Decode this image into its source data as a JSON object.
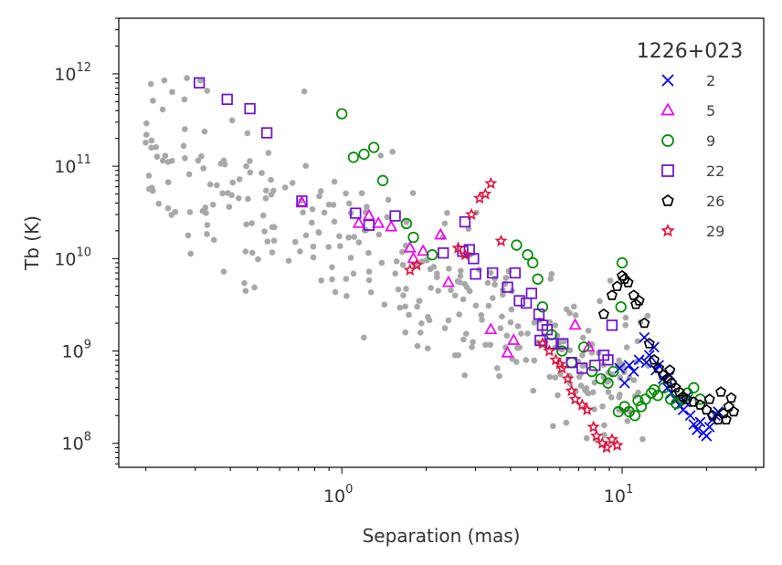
{
  "chart_data": {
    "type": "scatter",
    "xscale": "log",
    "yscale": "log",
    "xlim": [
      0.16,
      32
    ],
    "ylim": [
      55000000,
      4000000000000
    ],
    "xlabel": "Separation (mas)",
    "ylabel": "Tb (K)",
    "x_ticks": [
      {
        "value": 1,
        "base": "10",
        "exp": "0"
      },
      {
        "value": 10,
        "base": "10",
        "exp": "1"
      }
    ],
    "y_ticks": [
      {
        "value": 100000000,
        "base": "10",
        "exp": "8"
      },
      {
        "value": 1000000000,
        "base": "10",
        "exp": "9"
      },
      {
        "value": 10000000000,
        "base": "10",
        "exp": "10"
      },
      {
        "value": 100000000000,
        "base": "10",
        "exp": "11"
      },
      {
        "value": 1000000000000,
        "base": "10",
        "exp": "12"
      }
    ],
    "legend": {
      "title": "1226+023",
      "position": "top-right"
    },
    "background_series": {
      "name": "other sources",
      "color": "#a8a8a8",
      "seed": 7,
      "count": 330,
      "points_note": "dense grey cloud following declining trend"
    },
    "series": [
      {
        "name": "2",
        "marker": "x",
        "color": "#0000ee",
        "points": [
          [
            9.8,
            650000000.0
          ],
          [
            10.2,
            450000000.0
          ],
          [
            10.6,
            700000000.0
          ],
          [
            11.0,
            600000000.0
          ],
          [
            11.5,
            800000000.0
          ],
          [
            12.0,
            1400000000.0
          ],
          [
            12.5,
            900000000.0
          ],
          [
            13.0,
            1100000000.0
          ],
          [
            13.5,
            700000000.0
          ],
          [
            14.0,
            500000000.0
          ],
          [
            14.5,
            400000000.0
          ],
          [
            15.0,
            350000000.0
          ],
          [
            15.5,
            300000000.0
          ],
          [
            16.0,
            260000000.0
          ],
          [
            16.5,
            230000000.0
          ],
          [
            17.0,
            320000000.0
          ],
          [
            17.5,
            200000000.0
          ],
          [
            18.0,
            160000000.0
          ],
          [
            18.5,
            140000000.0
          ],
          [
            19.0,
            170000000.0
          ],
          [
            19.5,
            130000000.0
          ],
          [
            20.0,
            120000000.0
          ],
          [
            20.5,
            150000000.0
          ],
          [
            21.0,
            180000000.0
          ],
          [
            21.5,
            200000000.0
          ],
          [
            22.0,
            220000000.0
          ],
          [
            12.2,
            750000000.0
          ],
          [
            13.2,
            620000000.0
          ],
          [
            14.8,
            550000000.0
          ],
          [
            16.8,
            280000000.0
          ]
        ]
      },
      {
        "name": "5",
        "marker": "triangle",
        "color": "#ee00ee",
        "points": [
          [
            0.72,
            40000000000.0
          ],
          [
            1.15,
            24000000000.0
          ],
          [
            1.25,
            29000000000.0
          ],
          [
            1.35,
            24000000000.0
          ],
          [
            1.5,
            22000000000.0
          ],
          [
            1.75,
            13000000000.0
          ],
          [
            1.8,
            10000000000.0
          ],
          [
            1.95,
            12000000000.0
          ],
          [
            2.25,
            18000000000.0
          ],
          [
            2.4,
            5500000000.0
          ],
          [
            3.4,
            1700000000.0
          ],
          [
            3.9,
            950000000.0
          ],
          [
            4.1,
            1300000000.0
          ],
          [
            6.8,
            1900000000.0
          ],
          [
            7.6,
            1100000000.0
          ]
        ]
      },
      {
        "name": "9",
        "marker": "circle",
        "color": "#008800",
        "points": [
          [
            1.0,
            370000000000.0
          ],
          [
            1.1,
            125000000000.0
          ],
          [
            1.2,
            135000000000.0
          ],
          [
            1.3,
            160000000000.0
          ],
          [
            1.4,
            70000000000.0
          ],
          [
            1.7,
            24000000000.0
          ],
          [
            1.8,
            17000000000.0
          ],
          [
            2.1,
            11000000000.0
          ],
          [
            4.2,
            14000000000.0
          ],
          [
            4.6,
            11000000000.0
          ],
          [
            4.8,
            9000000000.0
          ],
          [
            5.0,
            6000000000.0
          ],
          [
            5.2,
            3000000000.0
          ],
          [
            5.6,
            1500000000.0
          ],
          [
            6.1,
            1000000000.0
          ],
          [
            6.6,
            750000000.0
          ],
          [
            7.3,
            1100000000.0
          ],
          [
            7.8,
            600000000.0
          ],
          [
            8.4,
            500000000.0
          ],
          [
            8.9,
            450000000.0
          ],
          [
            9.3,
            600000000.0
          ],
          [
            9.7,
            220000000.0
          ],
          [
            10.0,
            9000000000.0
          ],
          [
            10.2,
            250000000.0
          ],
          [
            10.6,
            220000000.0
          ],
          [
            11.1,
            200000000.0
          ],
          [
            11.7,
            250000000.0
          ],
          [
            12.1,
            300000000.0
          ],
          [
            12.7,
            350000000.0
          ],
          [
            13.4,
            330000000.0
          ],
          [
            14.1,
            400000000.0
          ],
          [
            14.9,
            300000000.0
          ],
          [
            15.6,
            270000000.0
          ],
          [
            16.4,
            300000000.0
          ],
          [
            17.1,
            350000000.0
          ],
          [
            18.0,
            400000000.0
          ],
          [
            19.0,
            300000000.0
          ],
          [
            9.9,
            3000000000.0
          ],
          [
            11.4,
            290000000.0
          ],
          [
            13.0,
            380000000.0
          ]
        ]
      },
      {
        "name": "22",
        "marker": "square",
        "color": "#6a0fd0",
        "points": [
          [
            0.31,
            800000000000.0
          ],
          [
            0.39,
            530000000000.0
          ],
          [
            0.47,
            420000000000.0
          ],
          [
            0.54,
            230000000000.0
          ],
          [
            0.72,
            42000000000.0
          ],
          [
            1.12,
            31000000000.0
          ],
          [
            1.25,
            23000000000.0
          ],
          [
            1.55,
            29000000000.0
          ],
          [
            2.3,
            11500000000.0
          ],
          [
            2.7,
            12000000000.0
          ],
          [
            2.75,
            25000000000.0
          ],
          [
            2.85,
            12500000000.0
          ],
          [
            2.95,
            10000000000.0
          ],
          [
            3.0,
            6800000000.0
          ],
          [
            3.45,
            7000000000.0
          ],
          [
            3.9,
            4900000000.0
          ],
          [
            4.15,
            7000000000.0
          ],
          [
            4.3,
            3500000000.0
          ],
          [
            4.55,
            3300000000.0
          ],
          [
            4.75,
            4200000000.0
          ],
          [
            5.05,
            2500000000.0
          ],
          [
            5.2,
            1900000000.0
          ],
          [
            5.4,
            1700000000.0
          ],
          [
            5.6,
            1200000000.0
          ],
          [
            6.15,
            1200000000.0
          ],
          [
            6.6,
            750000000.0
          ],
          [
            7.2,
            650000000.0
          ],
          [
            8.0,
            700000000.0
          ],
          [
            8.6,
            900000000.0
          ],
          [
            9.2,
            1900000000.0
          ],
          [
            8.9,
            800000000.0
          ],
          [
            5.1,
            1300000000.0
          ]
        ]
      },
      {
        "name": "26",
        "marker": "pentagon",
        "color": "#000000",
        "points": [
          [
            8.6,
            2500000000.0
          ],
          [
            9.2,
            4000000000.0
          ],
          [
            9.6,
            5000000000.0
          ],
          [
            10.0,
            6500000000.0
          ],
          [
            10.5,
            5500000000.0
          ],
          [
            11.0,
            4000000000.0
          ],
          [
            11.5,
            3500000000.0
          ],
          [
            12.0,
            2000000000.0
          ],
          [
            12.5,
            1200000000.0
          ],
          [
            13.0,
            800000000.0
          ],
          [
            13.5,
            650000000.0
          ],
          [
            14.0,
            550000000.0
          ],
          [
            14.5,
            500000000.0
          ],
          [
            15.0,
            450000000.0
          ],
          [
            15.5,
            400000000.0
          ],
          [
            16.0,
            360000000.0
          ],
          [
            16.5,
            320000000.0
          ],
          [
            17.0,
            300000000.0
          ],
          [
            18.0,
            280000000.0
          ],
          [
            19.0,
            260000000.0
          ],
          [
            20.0,
            230000000.0
          ],
          [
            21.0,
            200000000.0
          ],
          [
            22.0,
            180000000.0
          ],
          [
            23.0,
            210000000.0
          ],
          [
            24.0,
            250000000.0
          ],
          [
            25.0,
            220000000.0
          ],
          [
            20.5,
            300000000.0
          ],
          [
            22.5,
            360000000.0
          ],
          [
            23.5,
            180000000.0
          ],
          [
            24.5,
            310000000.0
          ],
          [
            10.2,
            6000000000.0
          ],
          [
            11.2,
            3200000000.0
          ],
          [
            14.8,
            620000000.0
          ]
        ]
      },
      {
        "name": "29",
        "marker": "star",
        "color": "#dc143c",
        "points": [
          [
            1.75,
            7500000000.0
          ],
          [
            1.85,
            8500000000.0
          ],
          [
            2.6,
            13000000000.0
          ],
          [
            2.75,
            11000000000.0
          ],
          [
            2.9,
            30000000000.0
          ],
          [
            3.1,
            45000000000.0
          ],
          [
            3.25,
            50000000000.0
          ],
          [
            3.4,
            65000000000.0
          ],
          [
            3.7,
            15500000000.0
          ],
          [
            5.5,
            1000000000.0
          ],
          [
            5.8,
            800000000.0
          ],
          [
            6.1,
            650000000.0
          ],
          [
            6.4,
            500000000.0
          ],
          [
            6.6,
            370000000.0
          ],
          [
            6.8,
            300000000.0
          ],
          [
            7.2,
            260000000.0
          ],
          [
            7.5,
            230000000.0
          ],
          [
            7.9,
            150000000.0
          ],
          [
            8.1,
            120000000.0
          ],
          [
            8.5,
            100000000.0
          ],
          [
            8.8,
            90000000.0
          ],
          [
            9.2,
            110000000.0
          ],
          [
            9.6,
            95000000.0
          ],
          [
            5.2,
            1200000000.0
          ],
          [
            6.0,
            720000000.0
          ]
        ]
      }
    ]
  }
}
